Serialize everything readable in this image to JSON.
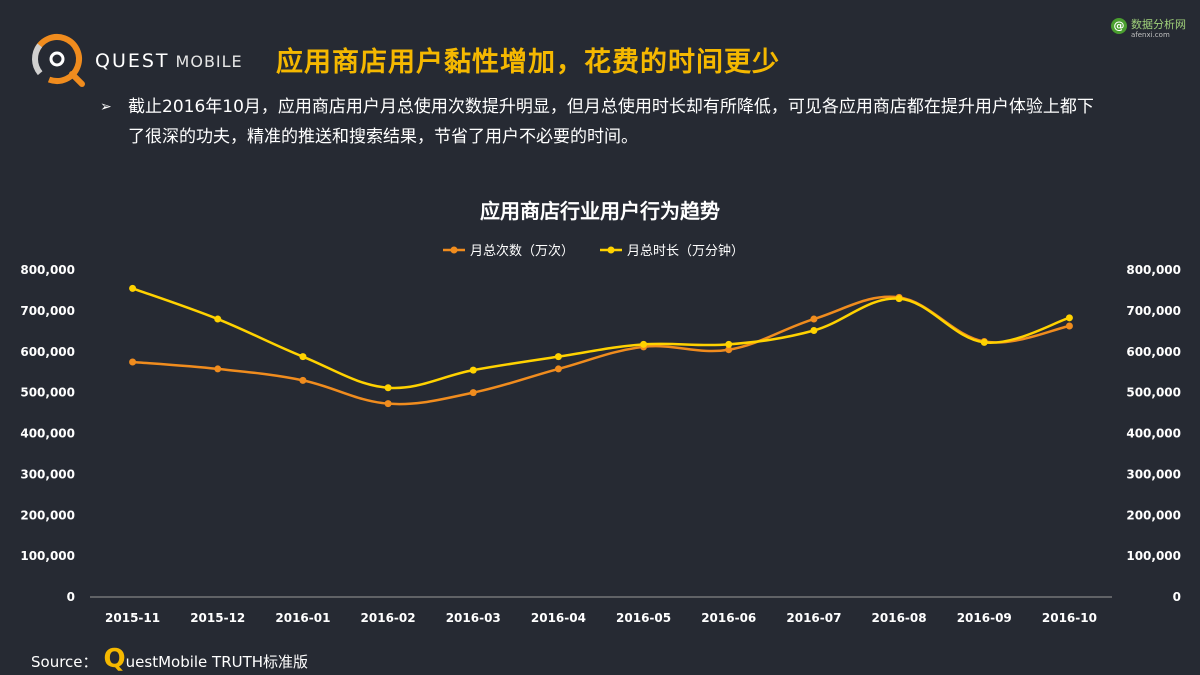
{
  "brand": {
    "name_left": "QUEST",
    "name_right": "MOBILE"
  },
  "headline": "应用商店用户黏性增加，花费的时间更少",
  "watermark": {
    "icon": "@",
    "text": "数据分析网",
    "url": "afenxi.com"
  },
  "bullet": {
    "marker": "➢",
    "text": "截止2016年10月，应用商店用户月总使用次数提升明显，但月总使用时长却有所降低，可见各应用商店都在提升用户体验上都下了很深的功夫，精准的推送和搜索结果，节省了用户不必要的时间。"
  },
  "source": {
    "label": "Source：",
    "q": "Q",
    "rest": "uestMobile TRUTH标准版"
  },
  "colors": {
    "series1": "#f08c1e",
    "series2": "#ffd200",
    "axis": "#9a9a9a",
    "headline": "#f5b800"
  },
  "chart_data": {
    "type": "line",
    "title": "应用商店行业用户行为趋势",
    "categories": [
      "2015-11",
      "2015-12",
      "2016-01",
      "2016-02",
      "2016-03",
      "2016-04",
      "2016-05",
      "2016-06",
      "2016-07",
      "2016-08",
      "2016-09",
      "2016-10"
    ],
    "series": [
      {
        "name": "月总次数（万次）",
        "axis": "left",
        "values": [
          575000,
          558000,
          530000,
          473000,
          500000,
          558000,
          612000,
          605000,
          680000,
          733000,
          625000,
          663000
        ]
      },
      {
        "name": "月总时长（万分钟）",
        "axis": "right",
        "values": [
          755000,
          680000,
          588000,
          512000,
          555000,
          588000,
          618000,
          618000,
          652000,
          730000,
          623000,
          683000
        ]
      }
    ],
    "y_left": {
      "ticks": [
        "0",
        "100,000",
        "200,000",
        "300,000",
        "400,000",
        "500,000",
        "600,000",
        "700,000",
        "800,000"
      ],
      "min": 0,
      "max": 800000
    },
    "y_right": {
      "ticks": [
        "0",
        "100,000",
        "200,000",
        "300,000",
        "400,000",
        "500,000",
        "600,000",
        "700,000",
        "800,000"
      ],
      "min": 0,
      "max": 800000
    },
    "legend": "top",
    "grid": false
  }
}
